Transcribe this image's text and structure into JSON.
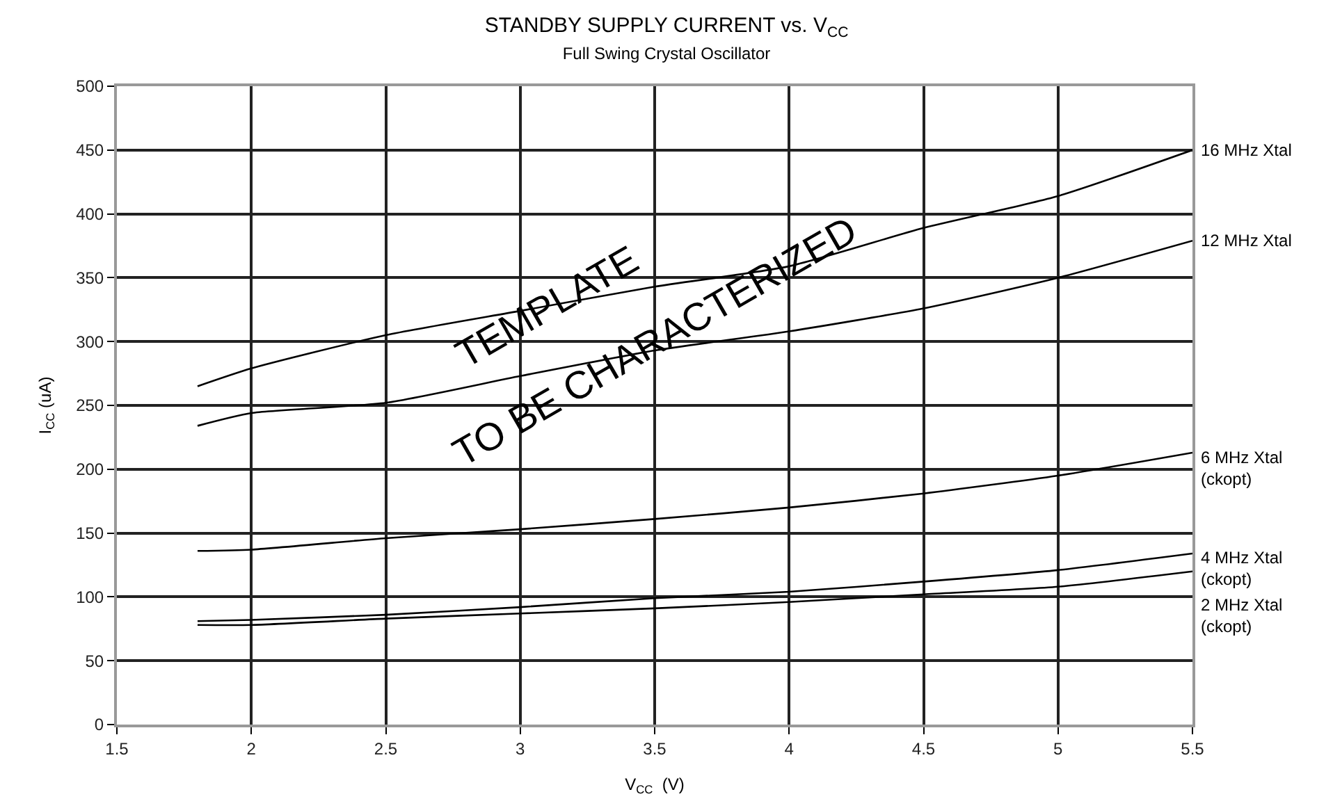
{
  "chart_data": {
    "type": "line",
    "title": "STANDBY SUPPLY CURRENT vs. V$_{CC}$",
    "subtitle": "Full Swing Crystal Oscillator",
    "xlabel": "V$_{CC}$  (V)",
    "ylabel": "I$_{CC}$ (uA)",
    "x": [
      1.8,
      2.0,
      2.5,
      3.0,
      3.5,
      4.0,
      4.5,
      5.0,
      5.5
    ],
    "series": [
      {
        "name": "16 MHz Xtal",
        "color": "#000000",
        "values": [
          265,
          279,
          305,
          324,
          343,
          359,
          389,
          414,
          450
        ]
      },
      {
        "name": "12 MHz Xtal",
        "color": "#000000",
        "values": [
          234,
          244,
          252,
          273,
          293,
          308,
          326,
          350,
          379
        ]
      },
      {
        "name": "6 MHz Xtal\n(ckopt)",
        "color": "#000000",
        "values": [
          136,
          137,
          146,
          153,
          161,
          170,
          181,
          195,
          213
        ]
      },
      {
        "name": "4 MHz Xtal\n(ckopt)",
        "color": "#000000",
        "values": [
          81,
          82,
          86,
          92,
          99,
          104,
          112,
          121,
          134
        ]
      },
      {
        "name": "2 MHz Xtal\n(ckopt)",
        "color": "#000000",
        "values": [
          78,
          78,
          83,
          87,
          91,
          96,
          102,
          108,
          120
        ]
      }
    ],
    "annotations": [
      "TEMPLATE",
      "TO BE CHARACTERIZED"
    ],
    "xlim": [
      1.5,
      5.5
    ],
    "xticks": [
      1.5,
      2,
      2.5,
      3,
      3.5,
      4,
      4.5,
      5,
      5.5
    ],
    "ylim": [
      0,
      500
    ],
    "yticks": [
      0,
      50,
      100,
      150,
      200,
      250,
      300,
      350,
      400,
      450,
      500
    ],
    "grid": true,
    "legend": false,
    "marker": "none",
    "line_style": "solid"
  }
}
